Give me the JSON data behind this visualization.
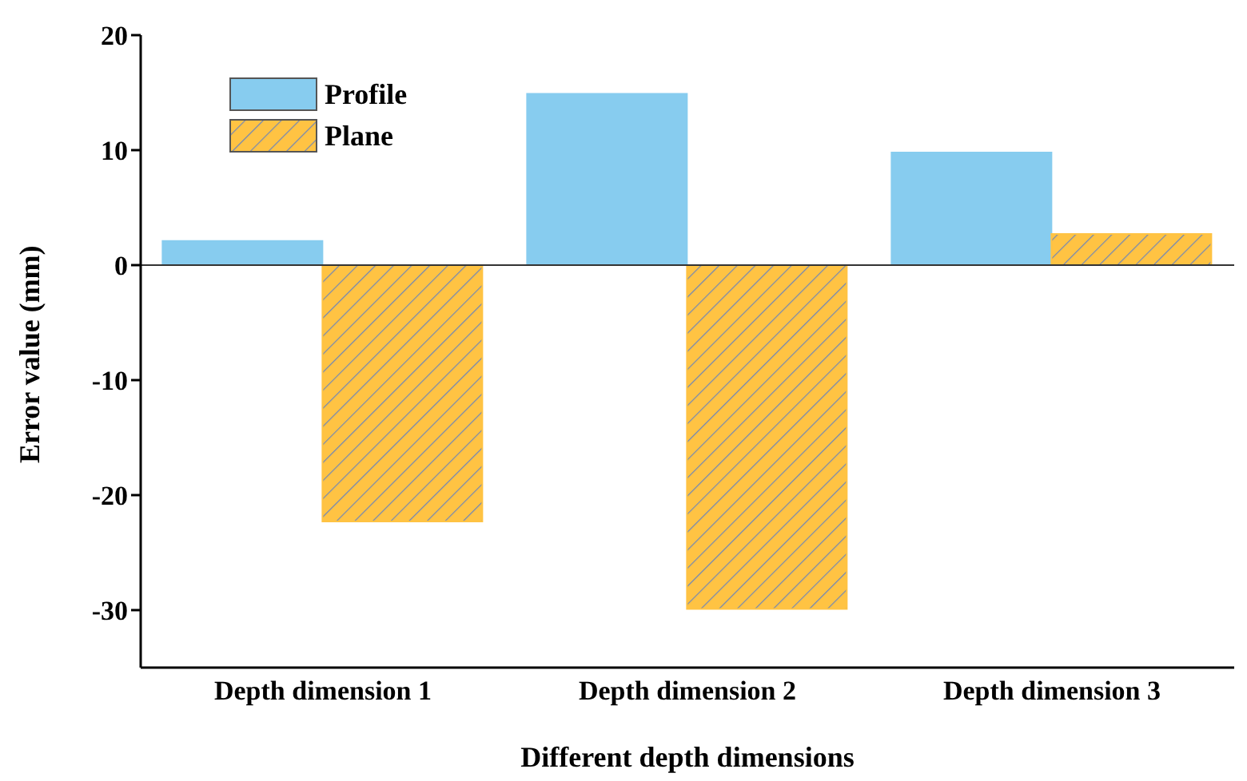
{
  "chart_data": {
    "type": "bar",
    "xlabel": "Different depth dimensions",
    "ylabel": "Error value (mm)",
    "categories": [
      "Depth dimension 1",
      "Depth dimension 2",
      "Depth dimension 3"
    ],
    "series": [
      {
        "name": "Profile",
        "color": "#87ccef",
        "values": [
          2.1,
          14.9,
          9.8
        ]
      },
      {
        "name": "Plane",
        "color": "#ffc343",
        "values": [
          -22.3,
          -29.9,
          2.7
        ]
      }
    ],
    "ylim": [
      -35,
      20
    ],
    "yticks": [
      -30,
      -20,
      -10,
      0,
      10,
      20
    ],
    "ref_lines": [
      {
        "axis": "y",
        "value": 0,
        "color": "#333333"
      }
    ],
    "grid": false,
    "legend": "top left"
  }
}
